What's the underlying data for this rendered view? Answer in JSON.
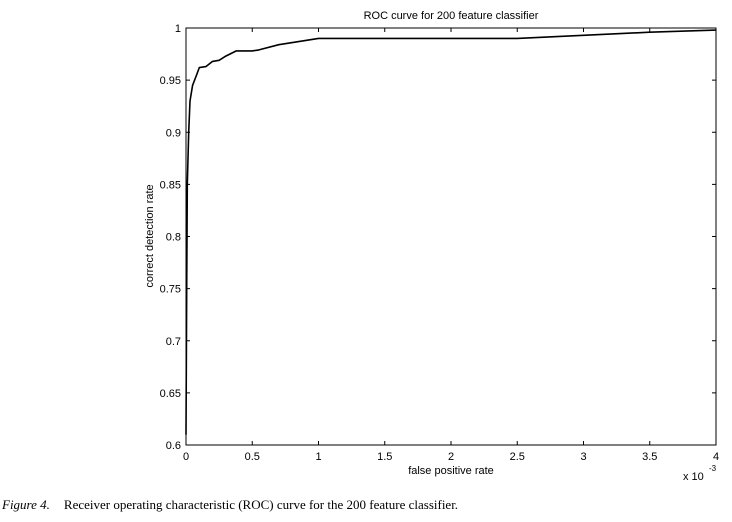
{
  "caption": {
    "label": "Figure 4.",
    "text": "Receiver operating characteristic (ROC) curve for the 200 feature classifier."
  },
  "chart_data": {
    "type": "line",
    "title": "ROC curve for 200 feature classifier",
    "xlabel": "false positive rate",
    "ylabel": "correct detection rate",
    "x_multiplier": "x 10",
    "x_multiplier_exponent": "-3",
    "xlim": [
      0,
      4
    ],
    "ylim": [
      0.6,
      1
    ],
    "xticks": [
      {
        "value": 0,
        "label": "0"
      },
      {
        "value": 0.5,
        "label": "0.5"
      },
      {
        "value": 1,
        "label": "1"
      },
      {
        "value": 1.5,
        "label": "1.5"
      },
      {
        "value": 2,
        "label": "2"
      },
      {
        "value": 2.5,
        "label": "2.5"
      },
      {
        "value": 3,
        "label": "3"
      },
      {
        "value": 3.5,
        "label": "3.5"
      },
      {
        "value": 4,
        "label": "4"
      }
    ],
    "yticks": [
      {
        "value": 0.6,
        "label": "0.6"
      },
      {
        "value": 0.65,
        "label": "0.65"
      },
      {
        "value": 0.7,
        "label": "0.7"
      },
      {
        "value": 0.75,
        "label": "0.75"
      },
      {
        "value": 0.8,
        "label": "0.8"
      },
      {
        "value": 0.85,
        "label": "0.85"
      },
      {
        "value": 0.9,
        "label": "0.9"
      },
      {
        "value": 0.95,
        "label": "0.95"
      },
      {
        "value": 1,
        "label": "1"
      }
    ],
    "grid": false,
    "series": [
      {
        "x": [
          0,
          0.005,
          0.01,
          0.02,
          0.03,
          0.05,
          0.08,
          0.1,
          0.15,
          0.2,
          0.25,
          0.3,
          0.38,
          0.5,
          0.55,
          0.7,
          1.0,
          1.5,
          2.0,
          2.5,
          3.0,
          3.5,
          4.0
        ],
        "y": [
          0.61,
          0.75,
          0.85,
          0.9,
          0.93,
          0.945,
          0.955,
          0.962,
          0.963,
          0.968,
          0.969,
          0.973,
          0.978,
          0.978,
          0.979,
          0.984,
          0.99,
          0.99,
          0.99,
          0.99,
          0.993,
          0.996,
          0.998
        ]
      }
    ]
  }
}
